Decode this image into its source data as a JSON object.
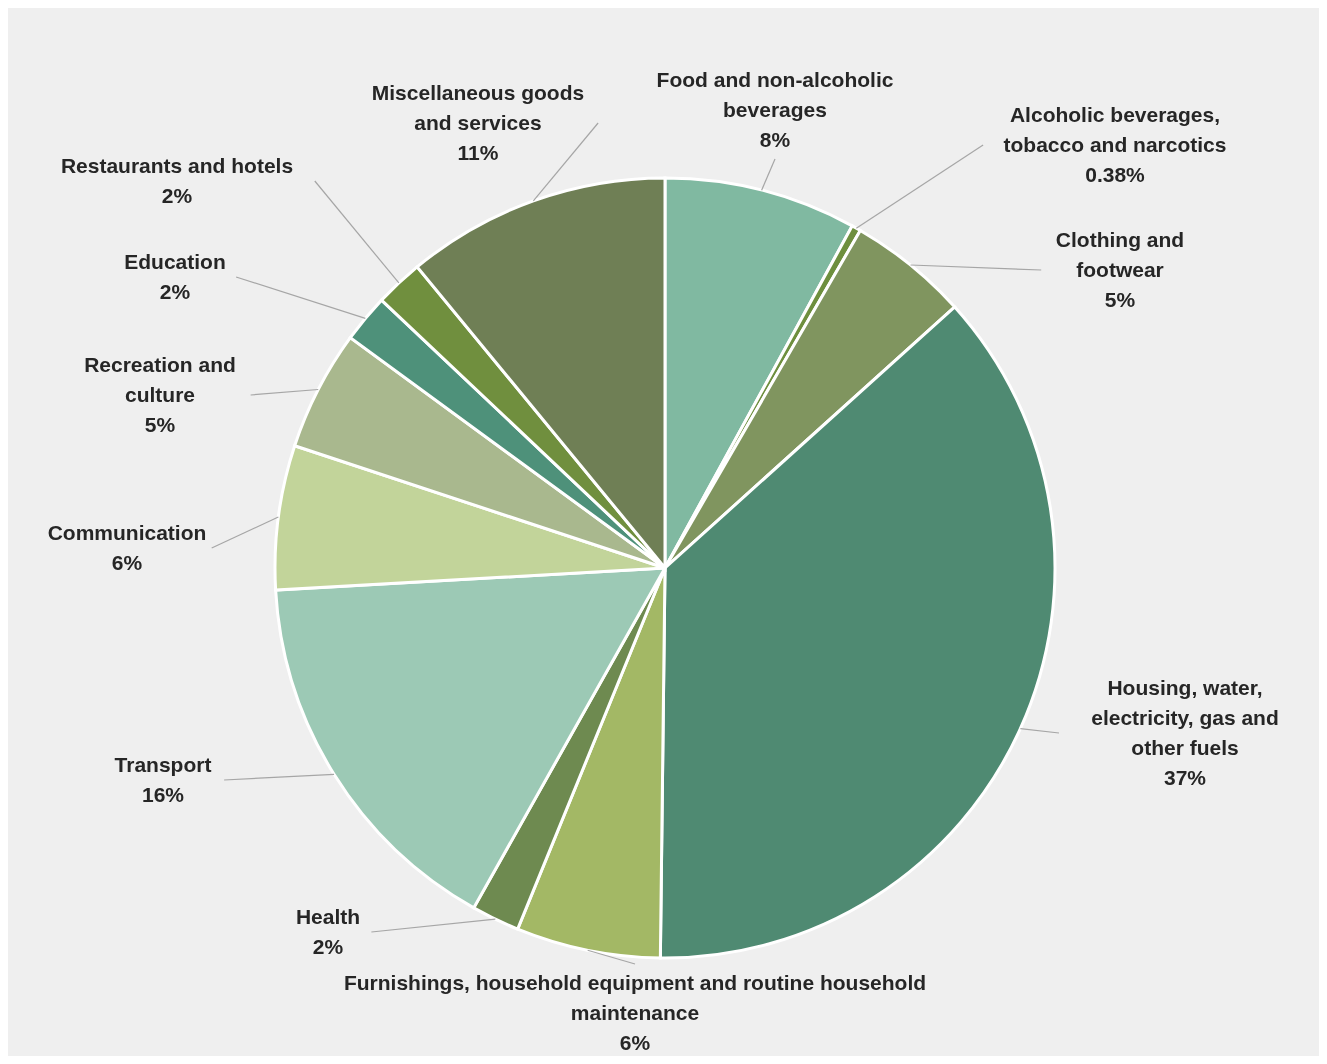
{
  "chart_data": {
    "type": "pie",
    "categories": [
      "Food and non-alcoholic beverages",
      "Alcoholic beverages, tobacco and narcotics",
      "Clothing and footwear",
      "Housing, water, electricity, gas and other fuels",
      "Furnishings, household equipment and routine household maintenance",
      "Health",
      "Transport",
      "Communication",
      "Recreation and culture",
      "Education",
      "Restaurants and hotels",
      "Miscellaneous goods and services"
    ],
    "values": [
      8,
      0.38,
      5,
      37,
      6,
      2,
      16,
      6,
      5,
      2,
      2,
      11
    ],
    "value_labels": [
      "8%",
      "0.38%",
      "5%",
      "37%",
      "6%",
      "2%",
      "16%",
      "6%",
      "5%",
      "2%",
      "2%",
      "11%"
    ],
    "colors": [
      "#80b9a1",
      "#6e8f3e",
      "#80955f",
      "#4f8a72",
      "#a3b865",
      "#6e8a50",
      "#9cc9b5",
      "#c2d49a",
      "#a9b88e",
      "#4e917a",
      "#708f3e",
      "#6f7f55"
    ],
    "legend": false
  }
}
